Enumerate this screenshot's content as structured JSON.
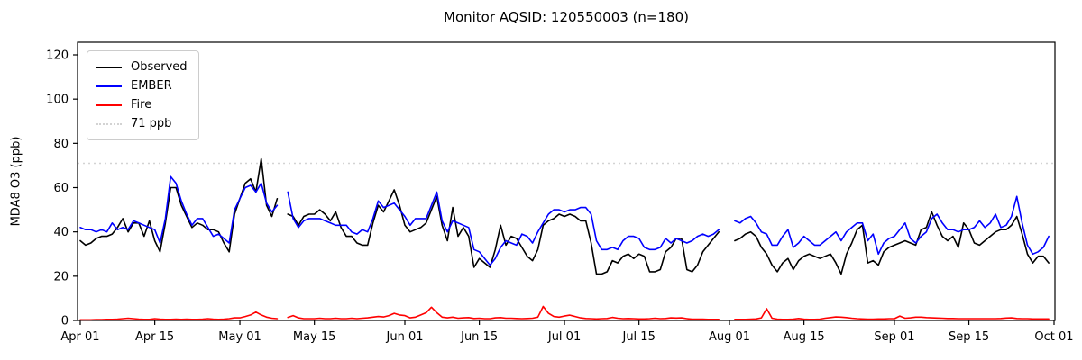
{
  "chart_data": {
    "type": "line",
    "title": "Monitor AQSID: 120550003 (n=180)",
    "ylabel": "MDA8 O3 (ppb)",
    "xlabel": "",
    "n_points": 180,
    "ylim": [
      0,
      126
    ],
    "grid": false,
    "legend_position": "upper-left",
    "background_color": "#ffffff",
    "x_start_date": "Apr 01",
    "x_end_date": "Oct 01",
    "days_total": 183,
    "missing_days": [
      "May 09",
      "Jul 31",
      "Aug 01"
    ],
    "yticks": [
      0,
      20,
      40,
      60,
      80,
      100,
      120
    ],
    "xticks": [
      {
        "label": "Apr 01",
        "day": 0
      },
      {
        "label": "Apr 15",
        "day": 14
      },
      {
        "label": "May 01",
        "day": 30
      },
      {
        "label": "May 15",
        "day": 44
      },
      {
        "label": "Jun 01",
        "day": 61
      },
      {
        "label": "Jun 15",
        "day": 75
      },
      {
        "label": "Jul 01",
        "day": 91
      },
      {
        "label": "Jul 15",
        "day": 105
      },
      {
        "label": "Aug 01",
        "day": 122
      },
      {
        "label": "Aug 15",
        "day": 136
      },
      {
        "label": "Sep 01",
        "day": 153
      },
      {
        "label": "Sep 15",
        "day": 167
      },
      {
        "label": "Oct 01",
        "day": 183
      }
    ],
    "threshold": {
      "value": 71,
      "label": "71 ppb",
      "color": "#d3d3d3",
      "style": "dotted"
    },
    "series": [
      {
        "name": "Observed",
        "color": "#000000",
        "style": "solid",
        "values": [
          36,
          34,
          35,
          37,
          38,
          38,
          39,
          42,
          46,
          40,
          44,
          44,
          38,
          45,
          36,
          31,
          44,
          60,
          60,
          52,
          47,
          42,
          44,
          43,
          41,
          41,
          40,
          35,
          31,
          48,
          55,
          62,
          64,
          58,
          73,
          52,
          47,
          55,
          null,
          48,
          47,
          43,
          47,
          48,
          48,
          50,
          48,
          45,
          49,
          42,
          38,
          38,
          35,
          34,
          34,
          44,
          52,
          49,
          54,
          59,
          52,
          43,
          40,
          41,
          42,
          44,
          50,
          56,
          43,
          36,
          51,
          38,
          42,
          38,
          24,
          28,
          26,
          24,
          32,
          43,
          34,
          38,
          37,
          33,
          29,
          27,
          32,
          43,
          45,
          46,
          48,
          47,
          48,
          47,
          45,
          45,
          35,
          21,
          21,
          22,
          27,
          26,
          29,
          30,
          28,
          30,
          29,
          22,
          22,
          23,
          31,
          33,
          37,
          37,
          23,
          22,
          25,
          31,
          34,
          37,
          40,
          null,
          null,
          36,
          37,
          39,
          40,
          38,
          33,
          30,
          25,
          22,
          26,
          28,
          23,
          27,
          29,
          30,
          29,
          28,
          29,
          30,
          26,
          21,
          30,
          35,
          41,
          43,
          26,
          27,
          25,
          31,
          33,
          34,
          35,
          36,
          35,
          34,
          41,
          42,
          49,
          43,
          38,
          36,
          38,
          33,
          44,
          41,
          35,
          34,
          36,
          38,
          40,
          41,
          41,
          43,
          47,
          39,
          30,
          26,
          29,
          29,
          26
        ]
      },
      {
        "name": "EMBER",
        "color": "#0000ff",
        "style": "solid",
        "values": [
          42,
          41,
          41,
          40,
          41,
          40,
          44,
          41,
          42,
          41,
          45,
          44,
          43,
          42,
          41,
          35,
          46,
          65,
          62,
          54,
          48,
          43,
          46,
          46,
          42,
          38,
          39,
          37,
          35,
          50,
          55,
          60,
          61,
          58,
          62,
          53,
          49,
          52,
          null,
          58,
          46,
          42,
          45,
          46,
          46,
          46,
          45,
          44,
          43,
          43,
          43,
          40,
          39,
          41,
          40,
          46,
          54,
          51,
          52,
          53,
          50,
          47,
          43,
          46,
          46,
          46,
          52,
          58,
          45,
          40,
          45,
          44,
          43,
          42,
          32,
          31,
          28,
          25,
          28,
          33,
          36,
          35,
          34,
          39,
          38,
          35,
          40,
          44,
          48,
          50,
          50,
          49,
          50,
          50,
          51,
          51,
          48,
          36,
          32,
          32,
          33,
          32,
          36,
          38,
          38,
          37,
          33,
          32,
          32,
          33,
          37,
          35,
          37,
          36,
          35,
          36,
          38,
          39,
          38,
          39,
          41,
          null,
          null,
          45,
          44,
          46,
          47,
          44,
          40,
          39,
          34,
          34,
          38,
          41,
          33,
          35,
          38,
          36,
          34,
          34,
          36,
          38,
          40,
          36,
          40,
          42,
          44,
          44,
          36,
          39,
          30,
          35,
          37,
          38,
          41,
          44,
          37,
          35,
          38,
          40,
          46,
          48,
          44,
          41,
          41,
          40,
          41,
          41,
          42,
          45,
          42,
          44,
          48,
          42,
          43,
          47,
          56,
          44,
          34,
          30,
          31,
          33,
          38
        ]
      },
      {
        "name": "Fire",
        "color": "#ff0000",
        "style": "solid",
        "values": [
          0.3,
          0.3,
          0.3,
          0.4,
          0.4,
          0.5,
          0.5,
          0.6,
          0.8,
          1.0,
          0.8,
          0.6,
          0.5,
          0.5,
          0.8,
          0.6,
          0.5,
          0.5,
          0.6,
          0.5,
          0.6,
          0.5,
          0.5,
          0.6,
          0.8,
          0.6,
          0.5,
          0.6,
          0.8,
          1.2,
          1.2,
          1.8,
          2.5,
          3.8,
          2.5,
          1.5,
          1.0,
          0.8,
          null,
          1.4,
          2.2,
          1.2,
          0.8,
          0.8,
          0.8,
          1.0,
          0.8,
          0.8,
          1.0,
          0.8,
          0.8,
          1.0,
          0.8,
          1.0,
          1.2,
          1.5,
          1.8,
          1.6,
          2.2,
          3.2,
          2.5,
          2.2,
          1.2,
          1.5,
          2.5,
          3.5,
          6.0,
          3.5,
          1.5,
          1.2,
          1.5,
          1.0,
          1.2,
          1.3,
          0.9,
          1.0,
          0.8,
          0.8,
          1.2,
          1.3,
          1.0,
          1.0,
          0.9,
          0.8,
          0.9,
          1.0,
          1.5,
          6.3,
          3.2,
          1.8,
          1.5,
          2.0,
          2.4,
          1.8,
          1.2,
          0.9,
          0.8,
          0.7,
          0.8,
          0.9,
          1.4,
          1.0,
          0.8,
          0.9,
          0.8,
          0.7,
          0.7,
          0.8,
          1.0,
          0.8,
          0.9,
          1.2,
          1.1,
          1.2,
          0.8,
          0.6,
          0.6,
          0.6,
          0.5,
          0.5,
          0.5,
          null,
          null,
          0.5,
          0.5,
          0.5,
          0.6,
          0.7,
          1.2,
          5.3,
          1.0,
          0.6,
          0.5,
          0.5,
          0.6,
          0.9,
          0.6,
          0.5,
          0.5,
          0.6,
          1.0,
          1.3,
          1.6,
          1.5,
          1.3,
          1.0,
          0.8,
          0.7,
          0.6,
          0.6,
          0.7,
          0.7,
          0.8,
          0.8,
          2.0,
          1.0,
          1.2,
          1.5,
          1.5,
          1.3,
          1.2,
          1.1,
          1.0,
          0.9,
          0.9,
          0.8,
          0.8,
          0.8,
          0.8,
          0.8,
          0.8,
          0.8,
          0.8,
          0.9,
          1.1,
          1.2,
          0.9,
          0.8,
          0.8,
          0.7,
          0.7,
          0.7,
          0.7
        ]
      }
    ]
  },
  "legend": {
    "items": [
      {
        "label": "Observed",
        "color": "#000000",
        "style": "solid"
      },
      {
        "label": "EMBER",
        "color": "#0000ff",
        "style": "solid"
      },
      {
        "label": "Fire",
        "color": "#ff0000",
        "style": "solid"
      },
      {
        "label": "71 ppb",
        "color": "#d3d3d3",
        "style": "dotted"
      }
    ]
  }
}
